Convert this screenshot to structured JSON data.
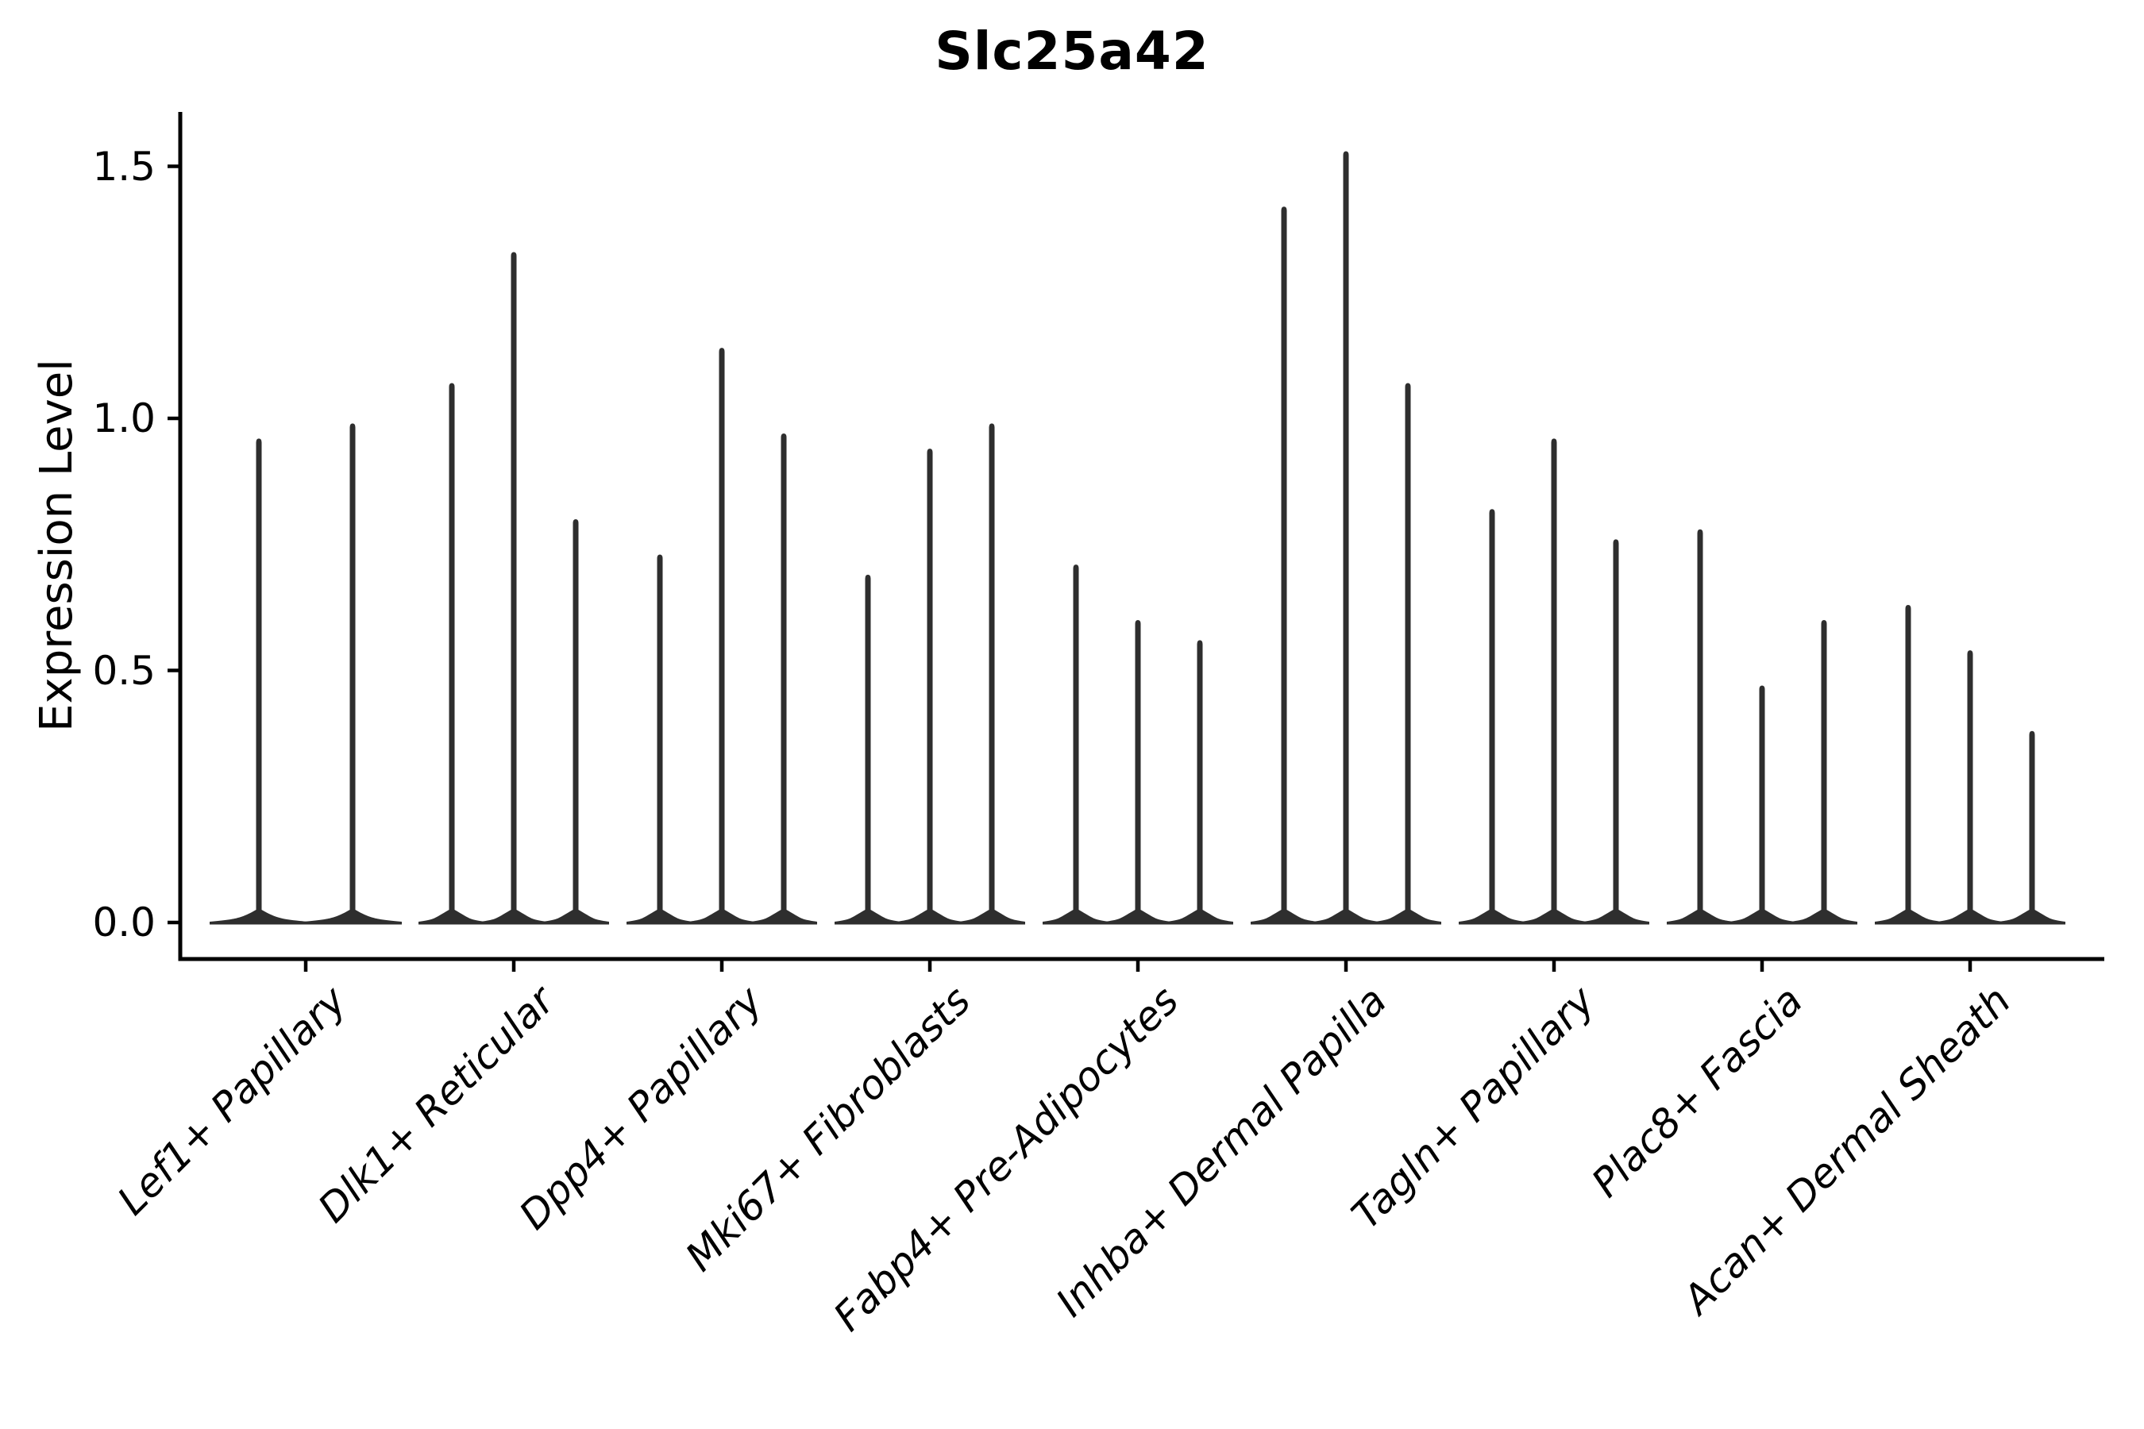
{
  "figure": {
    "background": "#ffffff"
  },
  "chart_data": {
    "type": "violin",
    "title": "Slc25a42",
    "ylabel": "Expression Level",
    "xlabel": "",
    "grid": false,
    "legend": false,
    "y_axis": {
      "tick_values": [
        0.0,
        0.5,
        1.0,
        1.5
      ],
      "tick_labels": [
        "0.0",
        "0.5",
        "1.0",
        "1.5"
      ],
      "range": [
        0,
        1.61
      ]
    },
    "categories": [
      "Lef1+ Papillary",
      "Dlk1+ Reticular",
      "Dpp4+ Papillary",
      "Mki67+ Fibroblasts",
      "Fabp4+ Pre-Adipocytes",
      "Inhba+ Dermal Papilla",
      "Tagln+ Papillary",
      "Plac8+ Fascia",
      "Acan+ Dermal Sheath"
    ],
    "groups": [
      {
        "category": "Lef1+ Papillary",
        "violin_max_values": [
          0.96,
          0.99
        ]
      },
      {
        "category": "Dlk1+ Reticular",
        "violin_max_values": [
          1.07,
          1.33,
          0.8
        ]
      },
      {
        "category": "Dpp4+ Papillary",
        "violin_max_values": [
          0.73,
          1.14,
          0.97
        ]
      },
      {
        "category": "Mki67+ Fibroblasts",
        "violin_max_values": [
          0.69,
          0.94,
          0.99
        ]
      },
      {
        "category": "Fabp4+ Pre-Adipocytes",
        "violin_max_values": [
          0.71,
          0.6,
          0.56
        ]
      },
      {
        "category": "Inhba+ Dermal Papilla",
        "violin_max_values": [
          1.42,
          1.53,
          1.07
        ]
      },
      {
        "category": "Tagln+ Papillary",
        "violin_max_values": [
          0.82,
          0.96,
          0.76
        ]
      },
      {
        "category": "Plac8+ Fascia",
        "violin_max_values": [
          0.78,
          0.47,
          0.6
        ]
      },
      {
        "category": "Acan+ Dermal Sheath",
        "violin_max_values": [
          0.63,
          0.54,
          0.38
        ]
      }
    ],
    "colors": {
      "violin": "#2e2e2e",
      "axis": "#000000",
      "text": "#000000"
    }
  }
}
